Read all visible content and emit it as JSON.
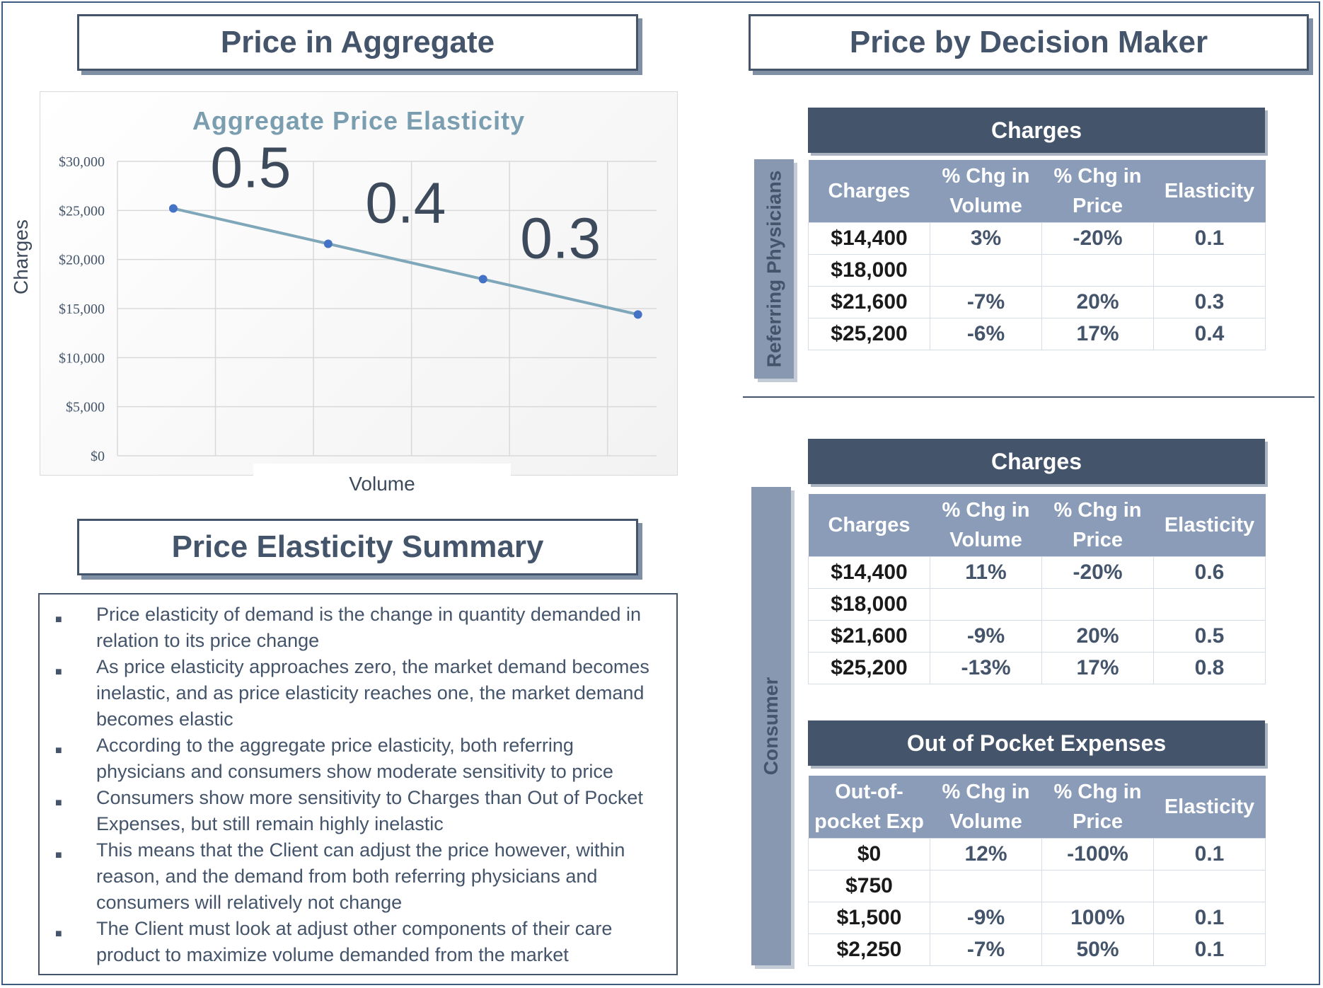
{
  "left": {
    "aggregate_title": "Price in Aggregate",
    "summary_title": "Price Elasticity Summary",
    "summary_bullets": [
      "Price elasticity of demand is the change in quantity demanded in relation to its price change",
      "As price elasticity approaches zero, the market demand becomes inelastic, and as price elasticity reaches one, the market demand becomes elastic",
      "According to the aggregate price elasticity, both referring physicians and consumers show moderate sensitivity to price",
      "Consumers show more sensitivity to Charges than Out of Pocket Expenses, but still remain highly inelastic",
      "This means that the Client can adjust the price however, within reason, and the demand from both referring physicians and consumers will relatively not change",
      "The Client must look at adjust other components of their care product to maximize volume demanded from the market"
    ]
  },
  "chart_data": {
    "type": "line",
    "title": "Aggregate Price Elasticity",
    "xlabel": "Volume",
    "ylabel": "Charges",
    "ylim": [
      0,
      30000
    ],
    "yticks": [
      "$0",
      "$5,000",
      "$10,000",
      "$15,000",
      "$20,000",
      "$25,000",
      "$30,000"
    ],
    "ytick_values": [
      0,
      5000,
      10000,
      15000,
      20000,
      25000,
      30000
    ],
    "grid": true,
    "series": [
      {
        "values": [
          25200,
          21600,
          18000,
          14400
        ]
      }
    ],
    "annotations": [
      "0.5",
      "0.4",
      "0.3"
    ],
    "colors": {
      "line": "#7fa7ba",
      "marker": "#4472c4"
    }
  },
  "right": {
    "title": "Price by Decision Maker",
    "referring": {
      "side_label": "Referring Physicians",
      "header": "Charges",
      "columns": [
        "Charges",
        "% Chg in Volume",
        "% Chg in Price",
        "Elasticity"
      ],
      "rows": [
        [
          "$14,400",
          "3%",
          "-20%",
          "0.1"
        ],
        [
          "$18,000",
          "",
          "",
          ""
        ],
        [
          "$21,600",
          "-7%",
          "20%",
          "0.3"
        ],
        [
          "$25,200",
          "-6%",
          "17%",
          "0.4"
        ]
      ]
    },
    "consumer": {
      "side_label": "Consumer",
      "charges": {
        "header": "Charges",
        "columns": [
          "Charges",
          "% Chg in Volume",
          "% Chg in Price",
          "Elasticity"
        ],
        "rows": [
          [
            "$14,400",
            "11%",
            "-20%",
            "0.6"
          ],
          [
            "$18,000",
            "",
            "",
            ""
          ],
          [
            "$21,600",
            "-9%",
            "20%",
            "0.5"
          ],
          [
            "$25,200",
            "-13%",
            "17%",
            "0.8"
          ]
        ]
      },
      "oop": {
        "header": "Out of Pocket Expenses",
        "columns": [
          "Out-of-pocket Exp",
          "% Chg in Volume",
          "% Chg in Price",
          "Elasticity"
        ],
        "rows": [
          [
            "$0",
            "12%",
            "-100%",
            "0.1"
          ],
          [
            "$750",
            "",
            "",
            ""
          ],
          [
            "$1,500",
            "-9%",
            "100%",
            "0.1"
          ],
          [
            "$2,250",
            "-7%",
            "50%",
            "0.1"
          ]
        ]
      }
    }
  }
}
